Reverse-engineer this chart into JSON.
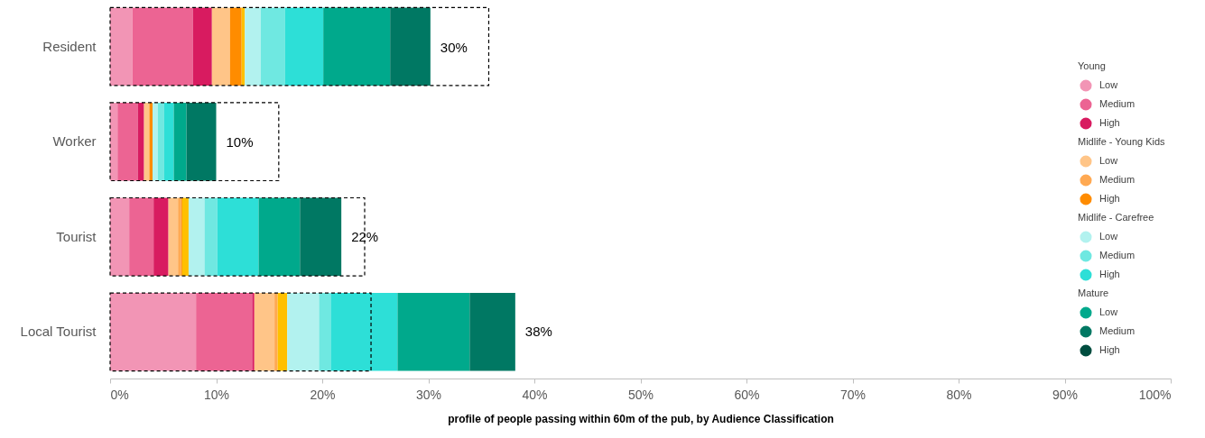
{
  "chart_data": {
    "type": "bar",
    "orientation": "horizontal",
    "xlabel": "profile of people passing within 60m of the pub, by Audience Classification",
    "categories": [
      "Resident",
      "Worker",
      "Tourist",
      "Local Tourist"
    ],
    "series": [
      {
        "name": "Low",
        "color": "#f295b5",
        "values": [
          2.1,
          0.7,
          1.8,
          8.1
        ],
        "base": [
          0,
          0,
          0,
          0
        ]
      },
      {
        "name": "Medium",
        "color": "#ec6493",
        "values": [
          5.7,
          1.9,
          2.3,
          5.3
        ],
        "base": [
          2.1,
          0.7,
          1.8,
          8.1
        ]
      },
      {
        "name": "High",
        "color": "#d81b60",
        "values": [
          1.8,
          0.6,
          1.4,
          0.2
        ],
        "base": [
          7.8,
          2.6,
          4.1,
          13.4
        ]
      },
      {
        "name": "Low",
        "color": "#ffc588",
        "values": [
          1.7,
          0.5,
          0.9,
          1.9
        ],
        "base": [
          9.6,
          3.2,
          5.5,
          13.6
        ]
      },
      {
        "name": "Medium",
        "color": "#ffa952",
        "values": [
          null,
          null,
          0.3,
          0.3
        ],
        "base": [
          null,
          null,
          6.4,
          15.5
        ]
      },
      {
        "name": "High",
        "color": "#ff8c00",
        "values": [
          1.1,
          0.3,
          0.1,
          null
        ],
        "base": [
          11.3,
          3.7,
          6.7,
          null
        ]
      },
      {
        "color": "#ffc000",
        "values": [
          0.3,
          null,
          0.6,
          0.9
        ],
        "base": [
          12.4,
          null,
          6.8,
          15.8
        ]
      },
      {
        "name": "Low",
        "color": "#b2f2ef",
        "values": [
          1.5,
          0.5,
          1.5,
          3.0
        ],
        "base": [
          12.7,
          4.0,
          7.4,
          16.7
        ]
      },
      {
        "name": "Medium",
        "color": "#6fe8e1",
        "values": [
          2.3,
          0.6,
          1.2,
          1.1
        ],
        "base": [
          14.2,
          4.5,
          8.9,
          19.7
        ]
      },
      {
        "name": "High",
        "color": "#2ddfd7",
        "values": [
          3.6,
          0.9,
          3.9,
          6.3
        ],
        "base": [
          16.5,
          5.1,
          10.1,
          20.8
        ]
      },
      {
        "name": "Low",
        "color": "#00a98c",
        "values": [
          6.3,
          1.2,
          3.9,
          6.8
        ],
        "base": [
          20.1,
          6.0,
          14.0,
          27.1
        ]
      },
      {
        "name": "Medium",
        "color": "#007863",
        "values": [
          3.8,
          2.8,
          3.9,
          4.3
        ],
        "base": [
          26.4,
          7.2,
          17.9,
          33.9
        ]
      },
      {
        "name": "High",
        "color": "#004d3f",
        "values": [
          null,
          null,
          null,
          null
        ]
      },
      {
        "line_style": "dashed",
        "color": "#000000",
        "values": [
          35.7,
          15.9,
          24.0,
          24.6
        ],
        "base": [
          0,
          0,
          0,
          0
        ]
      }
    ],
    "annotations": [
      "Young",
      "Midlife - Young Kids",
      "Midlife - Carefree",
      "Mature",
      {
        "text": "30%",
        "x": 30.2,
        "y": "Resident"
      },
      {
        "text": "10%",
        "x": 10.0,
        "y": "Worker"
      },
      {
        "text": "22%",
        "x": 21.8,
        "y": "Tourist"
      },
      {
        "text": "38%",
        "x": 38.2,
        "y": "Local Tourist"
      }
    ],
    "xlim": [
      0,
      100
    ],
    "xticks": [
      {
        "value": 0,
        "label": "0%"
      },
      {
        "value": 10,
        "label": "10%"
      },
      {
        "value": 20,
        "label": "20%"
      },
      {
        "value": 30,
        "label": "30%"
      },
      {
        "value": 40,
        "label": "40%"
      },
      {
        "value": 50,
        "label": "50%"
      },
      {
        "value": 60,
        "label": "60%"
      },
      {
        "value": 70,
        "label": "70%"
      },
      {
        "value": 80,
        "label": "80%"
      },
      {
        "value": 90,
        "label": "90%"
      },
      {
        "value": 100,
        "label": "100%"
      }
    ],
    "grid": false,
    "legend": "right"
  }
}
